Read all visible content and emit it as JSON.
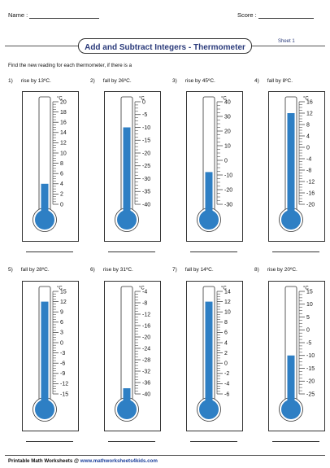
{
  "header": {
    "name_label": "Name :",
    "score_label": "Score :"
  },
  "title": "Add and Subtract Integers - Thermometer",
  "sheet": "Sheet 1",
  "instruction": "Find the new reading for each thermometer, if there is a",
  "fill_color": "#2e7fc4",
  "unit": "°C",
  "problems": [
    {
      "num": "1)",
      "text": "rise by 13ºC.",
      "ticks": [
        "20",
        "18",
        "16",
        "14",
        "12",
        "10",
        "8",
        "6",
        "4",
        "2",
        "0"
      ],
      "min": 0,
      "max": 20,
      "reading": 4
    },
    {
      "num": "2)",
      "text": "fall by 26ºC.",
      "ticks": [
        "0",
        "-5",
        "-10",
        "-15",
        "-20",
        "-25",
        "-30",
        "-35",
        "-40"
      ],
      "min": -40,
      "max": 0,
      "reading": -10
    },
    {
      "num": "3)",
      "text": "rise by 45ºC.",
      "ticks": [
        "40",
        "30",
        "20",
        "10",
        "0",
        "-10",
        "-20",
        "-30"
      ],
      "min": -30,
      "max": 40,
      "reading": -8
    },
    {
      "num": "4)",
      "text": "fall by 8ºC.",
      "ticks": [
        "16",
        "12",
        "8",
        "4",
        "0",
        "-4",
        "-8",
        "-12",
        "-16",
        "-20"
      ],
      "min": -20,
      "max": 16,
      "reading": 12
    },
    {
      "num": "5)",
      "text": "fall by 28ºC.",
      "ticks": [
        "15",
        "12",
        "9",
        "6",
        "3",
        "0",
        "-3",
        "-6",
        "-9",
        "-12",
        "-15"
      ],
      "min": -15,
      "max": 15,
      "reading": 12
    },
    {
      "num": "6)",
      "text": "rise by 31ºC.",
      "ticks": [
        "-4",
        "-8",
        "-12",
        "-16",
        "-20",
        "-24",
        "-28",
        "-32",
        "-36",
        "-40"
      ],
      "min": -40,
      "max": -4,
      "reading": -38
    },
    {
      "num": "7)",
      "text": "fall by 14ºC.",
      "ticks": [
        "14",
        "12",
        "10",
        "8",
        "6",
        "4",
        "2",
        "0",
        "-2",
        "-4",
        "-6"
      ],
      "min": -6,
      "max": 14,
      "reading": 12
    },
    {
      "num": "8)",
      "text": "rise by 20ºC.",
      "ticks": [
        "15",
        "10",
        "5",
        "0",
        "-5",
        "-10",
        "-15",
        "-20",
        "-25"
      ],
      "min": -25,
      "max": 15,
      "reading": -10
    }
  ],
  "footer": {
    "prefix": "Printable Math Worksheets @ ",
    "site": "www.mathworksheets4kids.com"
  }
}
